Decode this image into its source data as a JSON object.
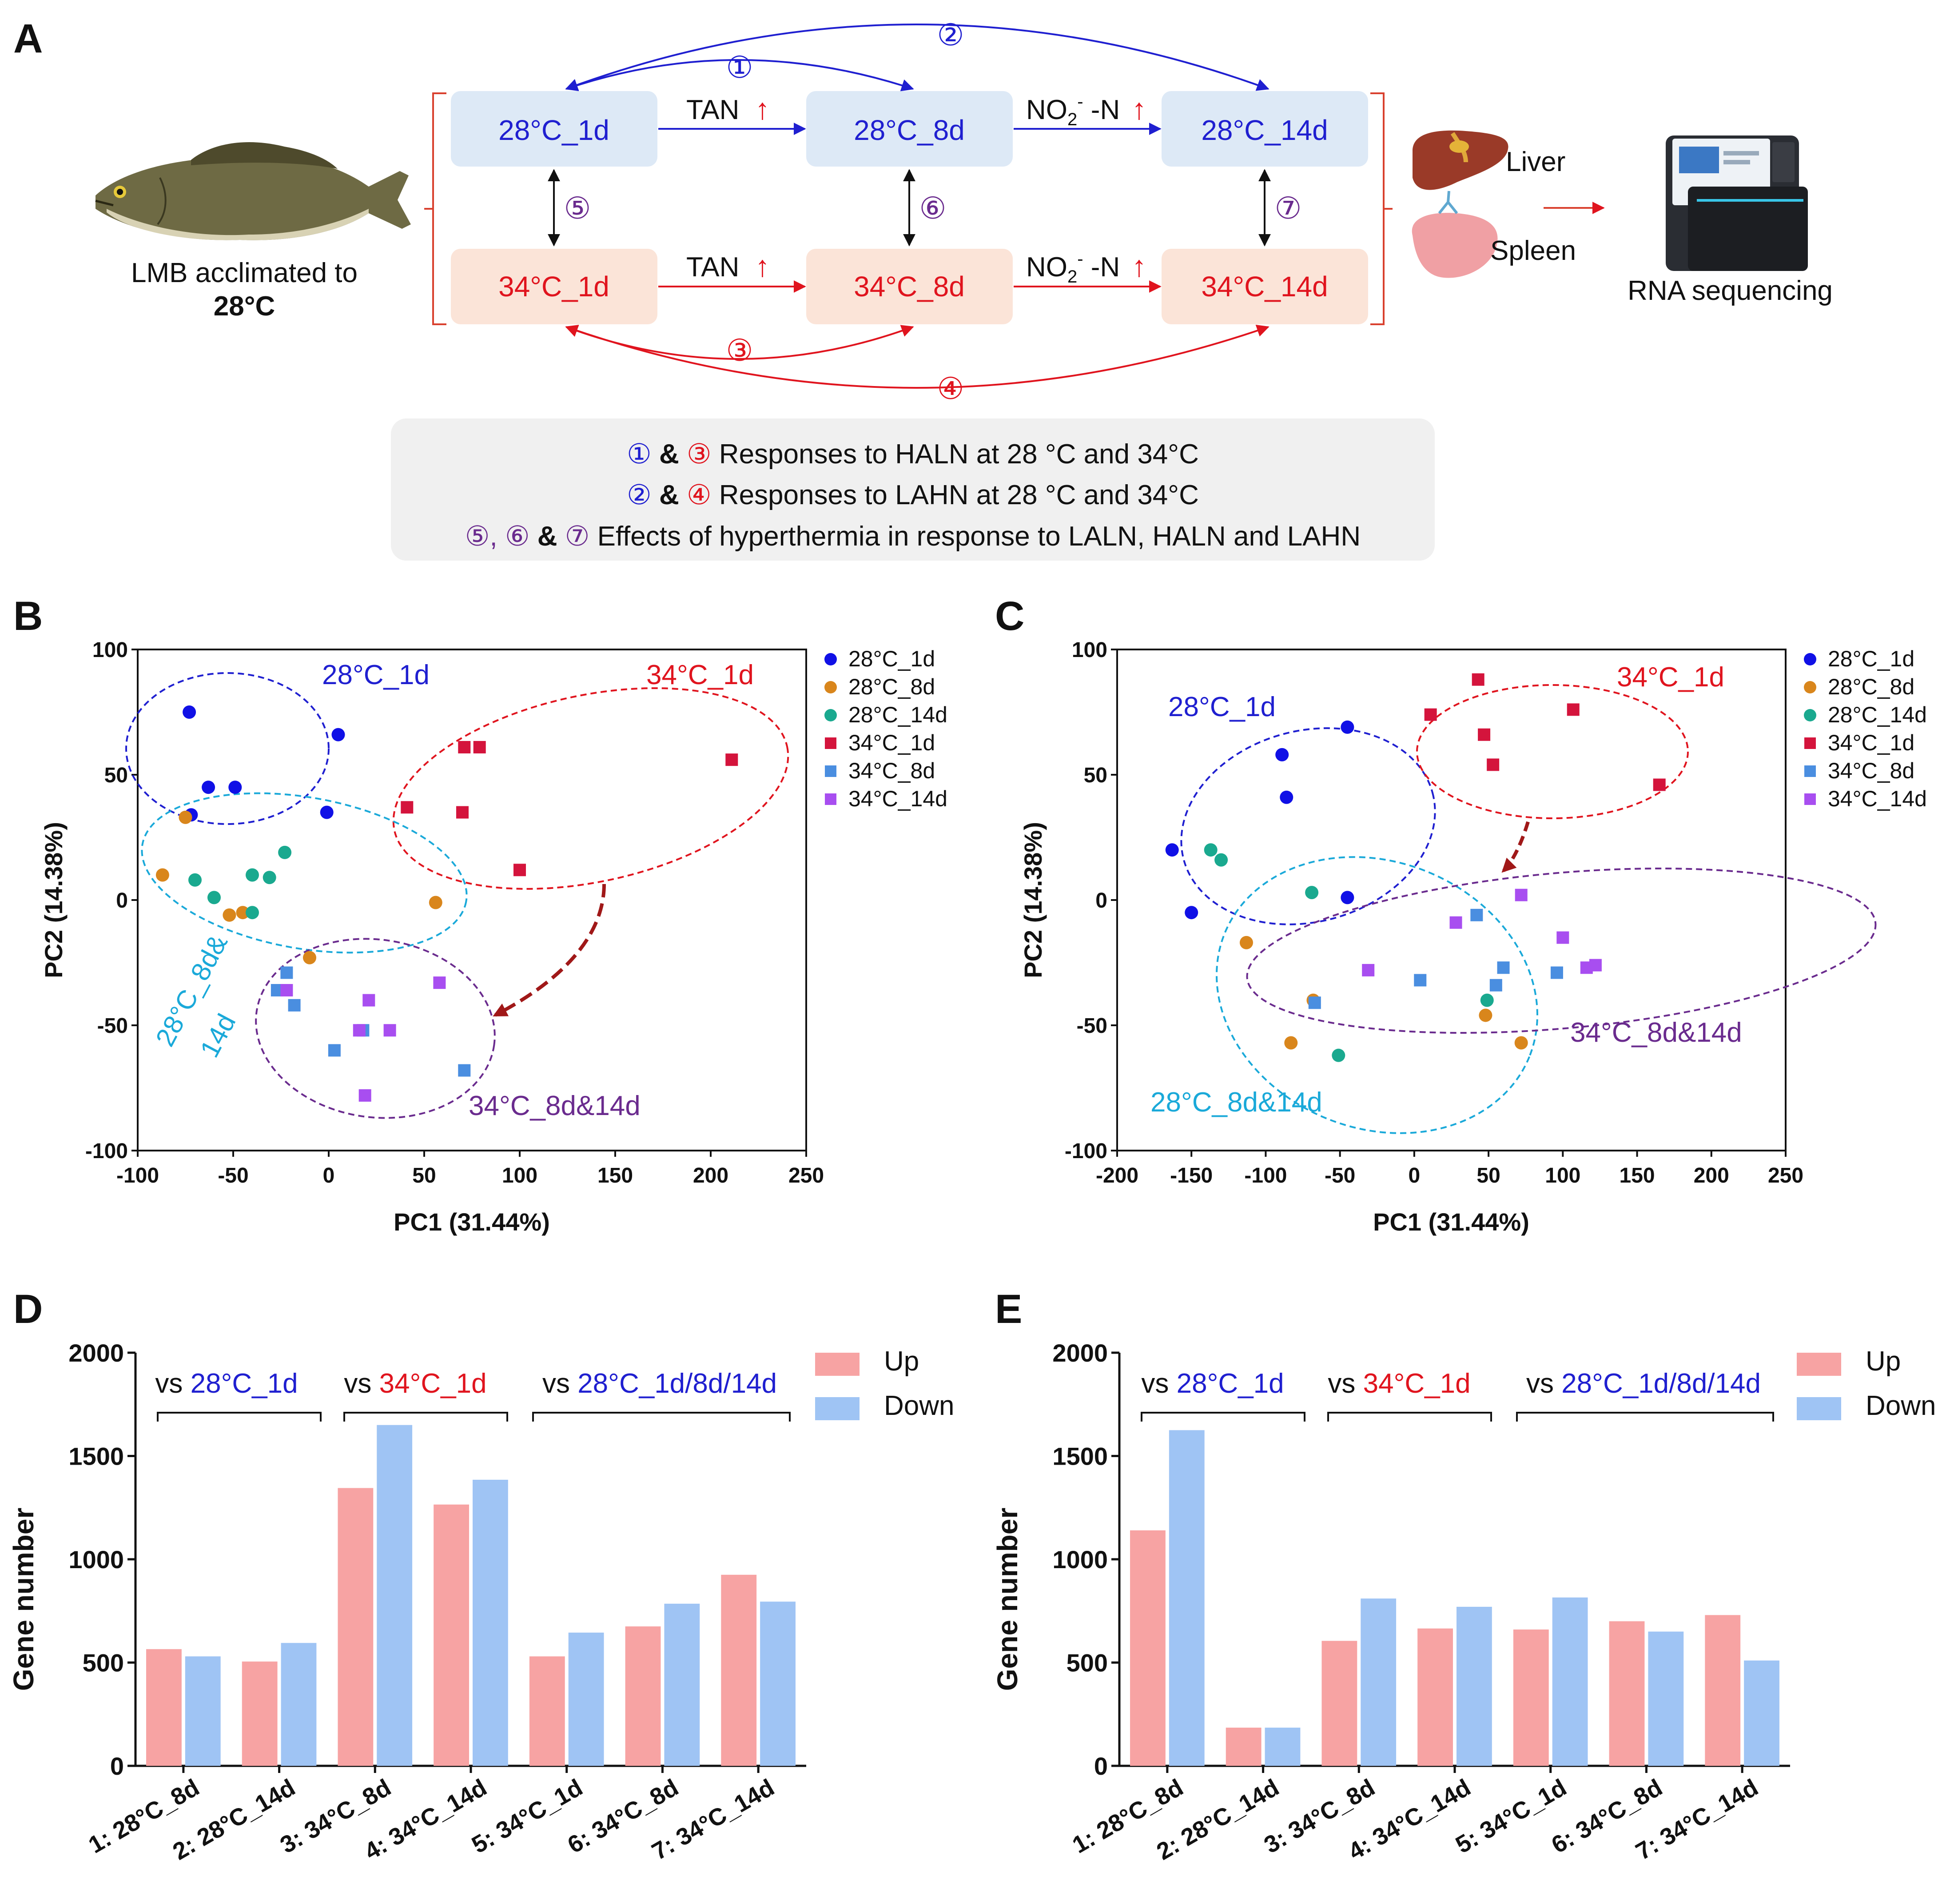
{
  "colors": {
    "blue_text": "#1f1fd0",
    "red_text": "#e0141e",
    "purple": "#6a2b8e",
    "cyan": "#1aa9d9",
    "box_blue": "#dde9f6",
    "box_red": "#fbe4d8",
    "panel_bg": "#f0f0f0",
    "s28_1d": "#1010e6",
    "s28_8d": "#d9861c",
    "s28_14d": "#1aa98f",
    "s34_1d": "#d4143c",
    "s34_8d": "#4a8ee0",
    "s34_14d": "#a84ef0",
    "bar_up": "#f7a3a3",
    "bar_down": "#9fc4f4"
  },
  "panel_a": {
    "label": "A",
    "fish_caption_line1": "LMB acclimated to",
    "fish_caption_line2": "28°C",
    "boxes": [
      "28°C_1d",
      "28°C_8d",
      "28°C_14d",
      "34°C_1d",
      "34°C_8d",
      "34°C_14d"
    ],
    "tan_label": "TAN",
    "no2_label": "NO",
    "no2_sub": "2",
    "no2_sup": "-",
    "no2_suffix": " -N",
    "up_arrow": "↑",
    "circled": [
      "①",
      "②",
      "③",
      "④",
      "⑤",
      "⑥",
      "⑦"
    ],
    "organ_liver": "Liver",
    "organ_spleen": "Spleen",
    "sequencer_caption": "RNA sequencing",
    "legend_lines": [
      {
        "a": "①",
        "sep": " & ",
        "b": "③",
        "text": " Responses to HALN at 28 °C  and 34°C"
      },
      {
        "a": "②",
        "sep": " & ",
        "b": "④",
        "text": " Responses to LAHN at 28 °C and 34°C"
      },
      {
        "a": "⑤,",
        "mid": " ⑥",
        "sep": " & ",
        "b": "⑦",
        "text": " Effects of hyperthermia in response to LALN, HALN and LAHN"
      }
    ]
  },
  "pca_legend": [
    "28°C_1d",
    "28°C_8d",
    "28°C_14d",
    "34°C_1d",
    "34°C_8d",
    "34°C_14d"
  ],
  "pca_xlabel": "PC1 (31.44%)",
  "pca_ylabel": "PC2 (14.38%)",
  "panel_b": {
    "label": "B",
    "ellipse_labels": {
      "g28_1d": "28°C_1d",
      "g34_1d": "34°C_1d",
      "g28_8d14d_line1": "28°C_8d&",
      "g28_8d14d_line2": "14d",
      "g34_8d14d": "34°C_8d&14d"
    }
  },
  "panel_c": {
    "label": "C",
    "ellipse_labels": {
      "g28_1d": "28°C_1d",
      "g34_1d": "34°C_1d",
      "g28_8d14d": "28°C_8d&14d",
      "g34_8d14d": "34°C_8d&14d"
    }
  },
  "bar_legend": [
    "Up",
    "Down"
  ],
  "bar_ylabel": "Gene number",
  "bar_groups": {
    "vs": "vs ",
    "g1": "28°C_1d",
    "g2": "34°C_1d",
    "g3": "28°C_1d/8d/14d"
  },
  "panel_d": {
    "label": "D"
  },
  "panel_e": {
    "label": "E"
  },
  "chart_data": [
    {
      "id": "B",
      "type": "scatter",
      "title": "",
      "xlabel": "PC1 (31.44%)",
      "ylabel": "PC2 (14.38%)",
      "xlim": [
        -100,
        250
      ],
      "ylim": [
        -100,
        100
      ],
      "xticks": [
        -100,
        -50,
        0,
        50,
        100,
        150,
        200,
        250
      ],
      "yticks": [
        -100,
        -50,
        0,
        50,
        100
      ],
      "series": [
        {
          "name": "28°C_1d",
          "shape": "circle",
          "points": [
            [
              -73,
              75
            ],
            [
              5,
              66
            ],
            [
              -63,
              45
            ],
            [
              -49,
              45
            ],
            [
              -72,
              34
            ],
            [
              -1,
              35
            ]
          ]
        },
        {
          "name": "28°C_8d",
          "shape": "circle",
          "points": [
            [
              -75,
              33
            ],
            [
              -87,
              10
            ],
            [
              -52,
              -6
            ],
            [
              -45,
              -5
            ],
            [
              -10,
              -23
            ],
            [
              56,
              -1
            ]
          ]
        },
        {
          "name": "28°C_14d",
          "shape": "circle",
          "points": [
            [
              -23,
              19
            ],
            [
              -70,
              8
            ],
            [
              -60,
              1
            ],
            [
              -40,
              10
            ],
            [
              -31,
              9
            ],
            [
              -40,
              -5
            ]
          ]
        },
        {
          "name": "34°C_1d",
          "shape": "square",
          "points": [
            [
              71,
              61
            ],
            [
              79,
              61
            ],
            [
              211,
              56
            ],
            [
              41,
              37
            ],
            [
              70,
              35
            ],
            [
              100,
              12
            ]
          ]
        },
        {
          "name": "34°C_8d",
          "shape": "square",
          "points": [
            [
              -22,
              -29
            ],
            [
              -27,
              -36
            ],
            [
              -18,
              -42
            ],
            [
              3,
              -60
            ],
            [
              18,
              -52
            ],
            [
              71,
              -68
            ]
          ]
        },
        {
          "name": "34°C_14d",
          "shape": "square",
          "points": [
            [
              -22,
              -36
            ],
            [
              58,
              -33
            ],
            [
              21,
              -40
            ],
            [
              16,
              -52
            ],
            [
              32,
              -52
            ],
            [
              19,
              -78
            ]
          ]
        }
      ]
    },
    {
      "id": "C",
      "type": "scatter",
      "title": "",
      "xlabel": "PC1 (31.44%)",
      "ylabel": "PC2 (14.38%)",
      "xlim": [
        -200,
        250
      ],
      "ylim": [
        -100,
        100
      ],
      "xticks": [
        -200,
        -150,
        -100,
        -50,
        0,
        50,
        100,
        150,
        200,
        250
      ],
      "yticks": [
        -100,
        -50,
        0,
        50,
        100
      ],
      "series": [
        {
          "name": "28°C_1d",
          "shape": "circle",
          "points": [
            [
              -45,
              69
            ],
            [
              -89,
              58
            ],
            [
              -86,
              41
            ],
            [
              -163,
              20
            ],
            [
              -150,
              -5
            ],
            [
              -45,
              1
            ]
          ]
        },
        {
          "name": "28°C_8d",
          "shape": "circle",
          "points": [
            [
              -113,
              -17
            ],
            [
              -83,
              -57
            ],
            [
              48,
              -46
            ],
            [
              72,
              -57
            ],
            [
              -68,
              -40
            ]
          ]
        },
        {
          "name": "28°C_14d",
          "shape": "circle",
          "points": [
            [
              -137,
              20
            ],
            [
              -130,
              16
            ],
            [
              -69,
              3
            ],
            [
              -51,
              -62
            ],
            [
              49,
              -40
            ]
          ]
        },
        {
          "name": "34°C_1d",
          "shape": "square",
          "points": [
            [
              11,
              74
            ],
            [
              43,
              88
            ],
            [
              47,
              66
            ],
            [
              53,
              54
            ],
            [
              107,
              76
            ],
            [
              165,
              46
            ]
          ]
        },
        {
          "name": "34°C_8d",
          "shape": "square",
          "points": [
            [
              42,
              -6
            ],
            [
              4,
              -32
            ],
            [
              60,
              -27
            ],
            [
              55,
              -34
            ],
            [
              96,
              -29
            ],
            [
              -67,
              -41
            ]
          ]
        },
        {
          "name": "34°C_14d",
          "shape": "square",
          "points": [
            [
              72,
              2
            ],
            [
              28,
              -9
            ],
            [
              -31,
              -28
            ],
            [
              100,
              -15
            ],
            [
              116,
              -27
            ],
            [
              122,
              -26
            ]
          ]
        }
      ]
    },
    {
      "id": "D",
      "type": "bar",
      "title": "",
      "xlabel": "",
      "ylabel": "Gene number",
      "ylim": [
        0,
        2000
      ],
      "yticks": [
        0,
        500,
        1000,
        1500,
        2000
      ],
      "categories": [
        "1: 28°C_8d",
        "2: 28°C_14d",
        "3: 34°C_8d",
        "4: 34°C_14d",
        "5: 34°C_1d",
        "6: 34°C_8d",
        "7: 34°C_14d"
      ],
      "series": [
        {
          "name": "Up",
          "values": [
            565,
            505,
            1345,
            1265,
            530,
            675,
            925
          ]
        },
        {
          "name": "Down",
          "values": [
            530,
            595,
            1650,
            1385,
            645,
            785,
            795
          ]
        }
      ]
    },
    {
      "id": "E",
      "type": "bar",
      "title": "",
      "xlabel": "",
      "ylabel": "Gene number",
      "ylim": [
        0,
        2000
      ],
      "yticks": [
        0,
        500,
        1000,
        1500,
        2000
      ],
      "categories": [
        "1: 28°C_8d",
        "2: 28°C_14d",
        "3: 34°C_8d",
        "4: 34°C_14d",
        "5: 34°C_1d",
        "6: 34°C_8d",
        "7: 34°C_14d"
      ],
      "series": [
        {
          "name": "Up",
          "values": [
            1140,
            185,
            605,
            665,
            660,
            700,
            730
          ]
        },
        {
          "name": "Down",
          "values": [
            1625,
            185,
            810,
            770,
            815,
            650,
            510
          ]
        }
      ]
    }
  ]
}
